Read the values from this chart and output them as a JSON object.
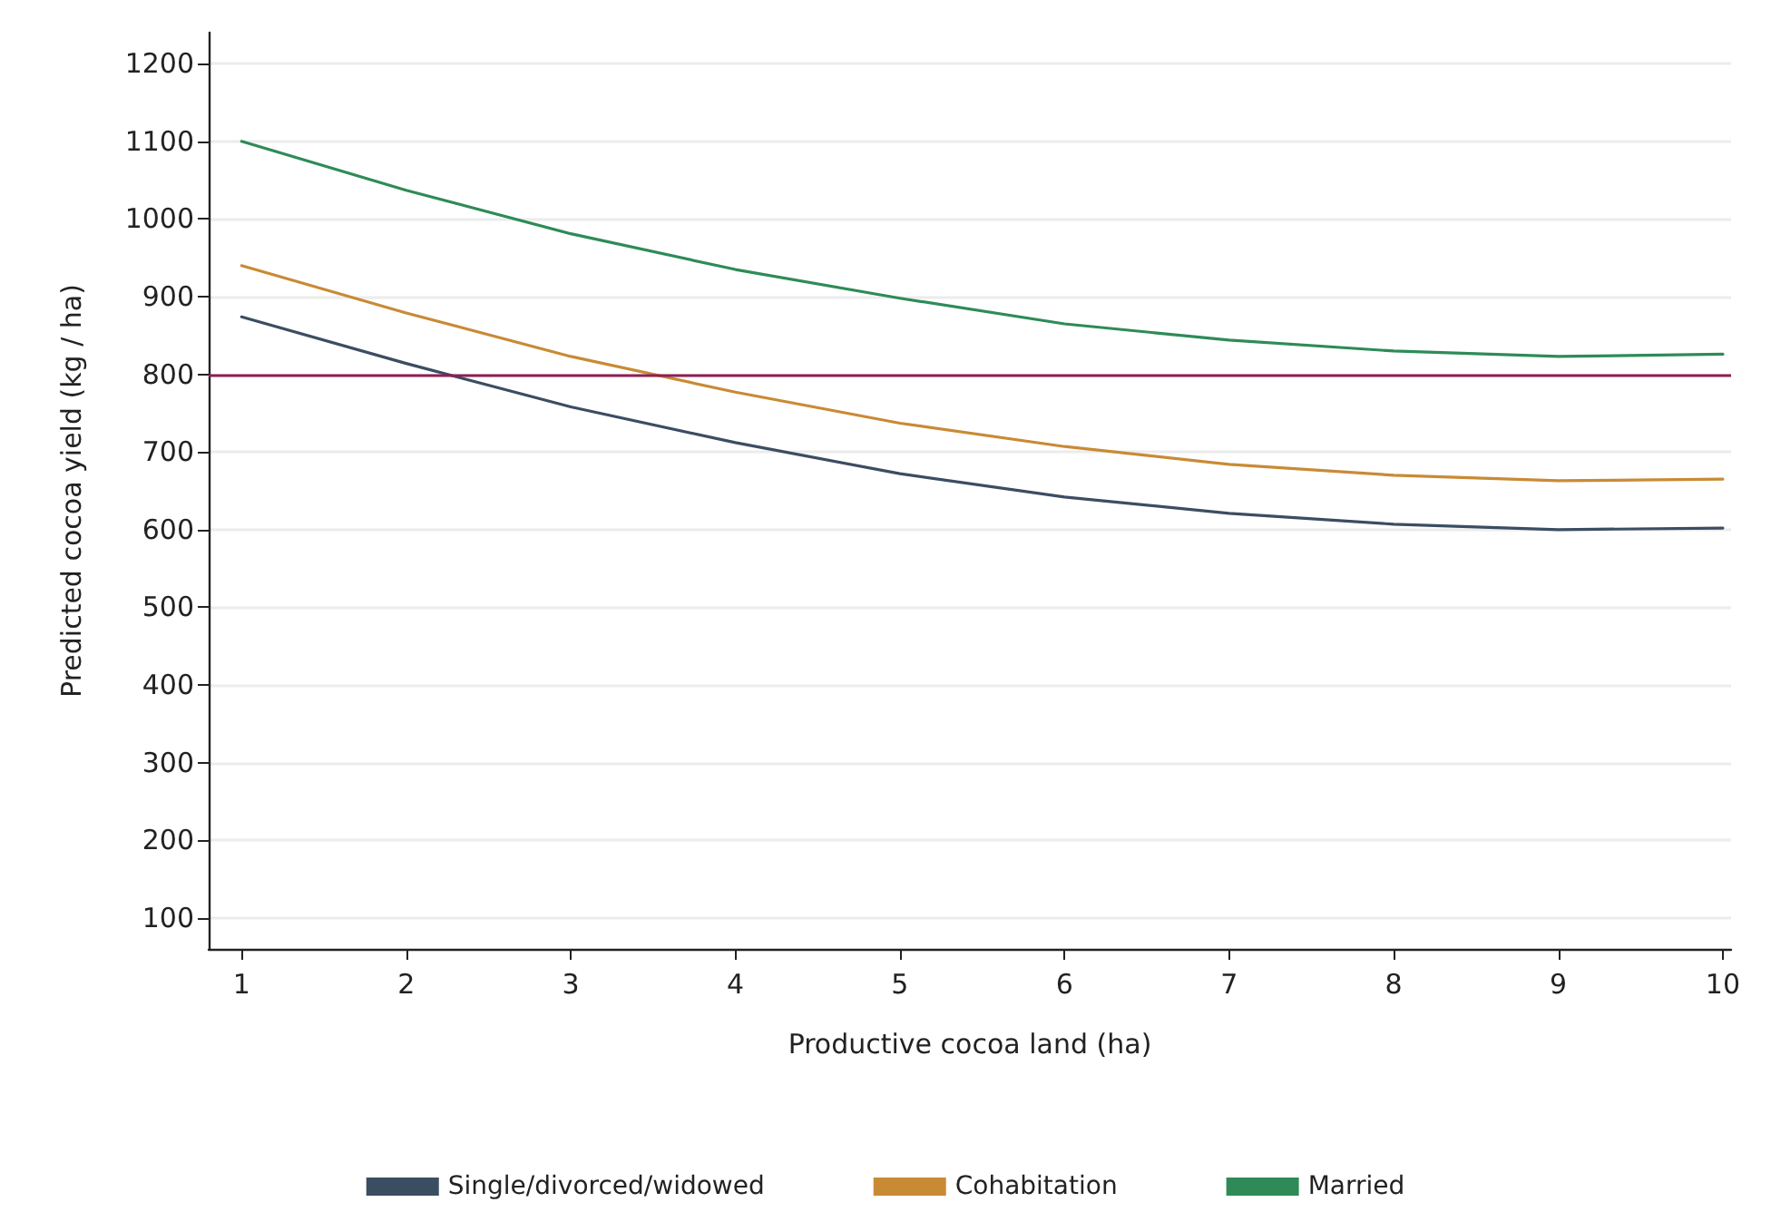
{
  "chart_data": {
    "type": "line",
    "xlabel": "Productive cocoa land (ha)",
    "ylabel": "Predicted cocoa yield (kg / ha)",
    "x": [
      1,
      2,
      3,
      4,
      5,
      6,
      7,
      8,
      9,
      10
    ],
    "series": [
      {
        "name": "Single/divorced/widowed",
        "color": "#3b4d61",
        "values": [
          874,
          814,
          758,
          712,
          672,
          642,
          621,
          607,
          600,
          602
        ]
      },
      {
        "name": "Cohabitation",
        "color": "#c98a35",
        "values": [
          940,
          879,
          823,
          777,
          737,
          707,
          684,
          670,
          663,
          665
        ]
      },
      {
        "name": "Married",
        "color": "#2e8b57",
        "values": [
          1100,
          1037,
          981,
          935,
          898,
          865,
          844,
          830,
          823,
          826
        ]
      }
    ],
    "xlim": [
      0.8,
      10.05
    ],
    "xticks": [
      1,
      2,
      3,
      4,
      5,
      6,
      7,
      8,
      9,
      10
    ],
    "ylim": [
      60,
      1240
    ],
    "yticks": [
      100,
      200,
      300,
      400,
      500,
      600,
      700,
      800,
      900,
      1000,
      1100,
      1200
    ],
    "ref_lines": [
      {
        "axis": "y",
        "value": 800,
        "color": "#8e1f55"
      }
    ],
    "grid": "y",
    "legend": "bottom",
    "marker": "none",
    "line_style": "solid"
  }
}
